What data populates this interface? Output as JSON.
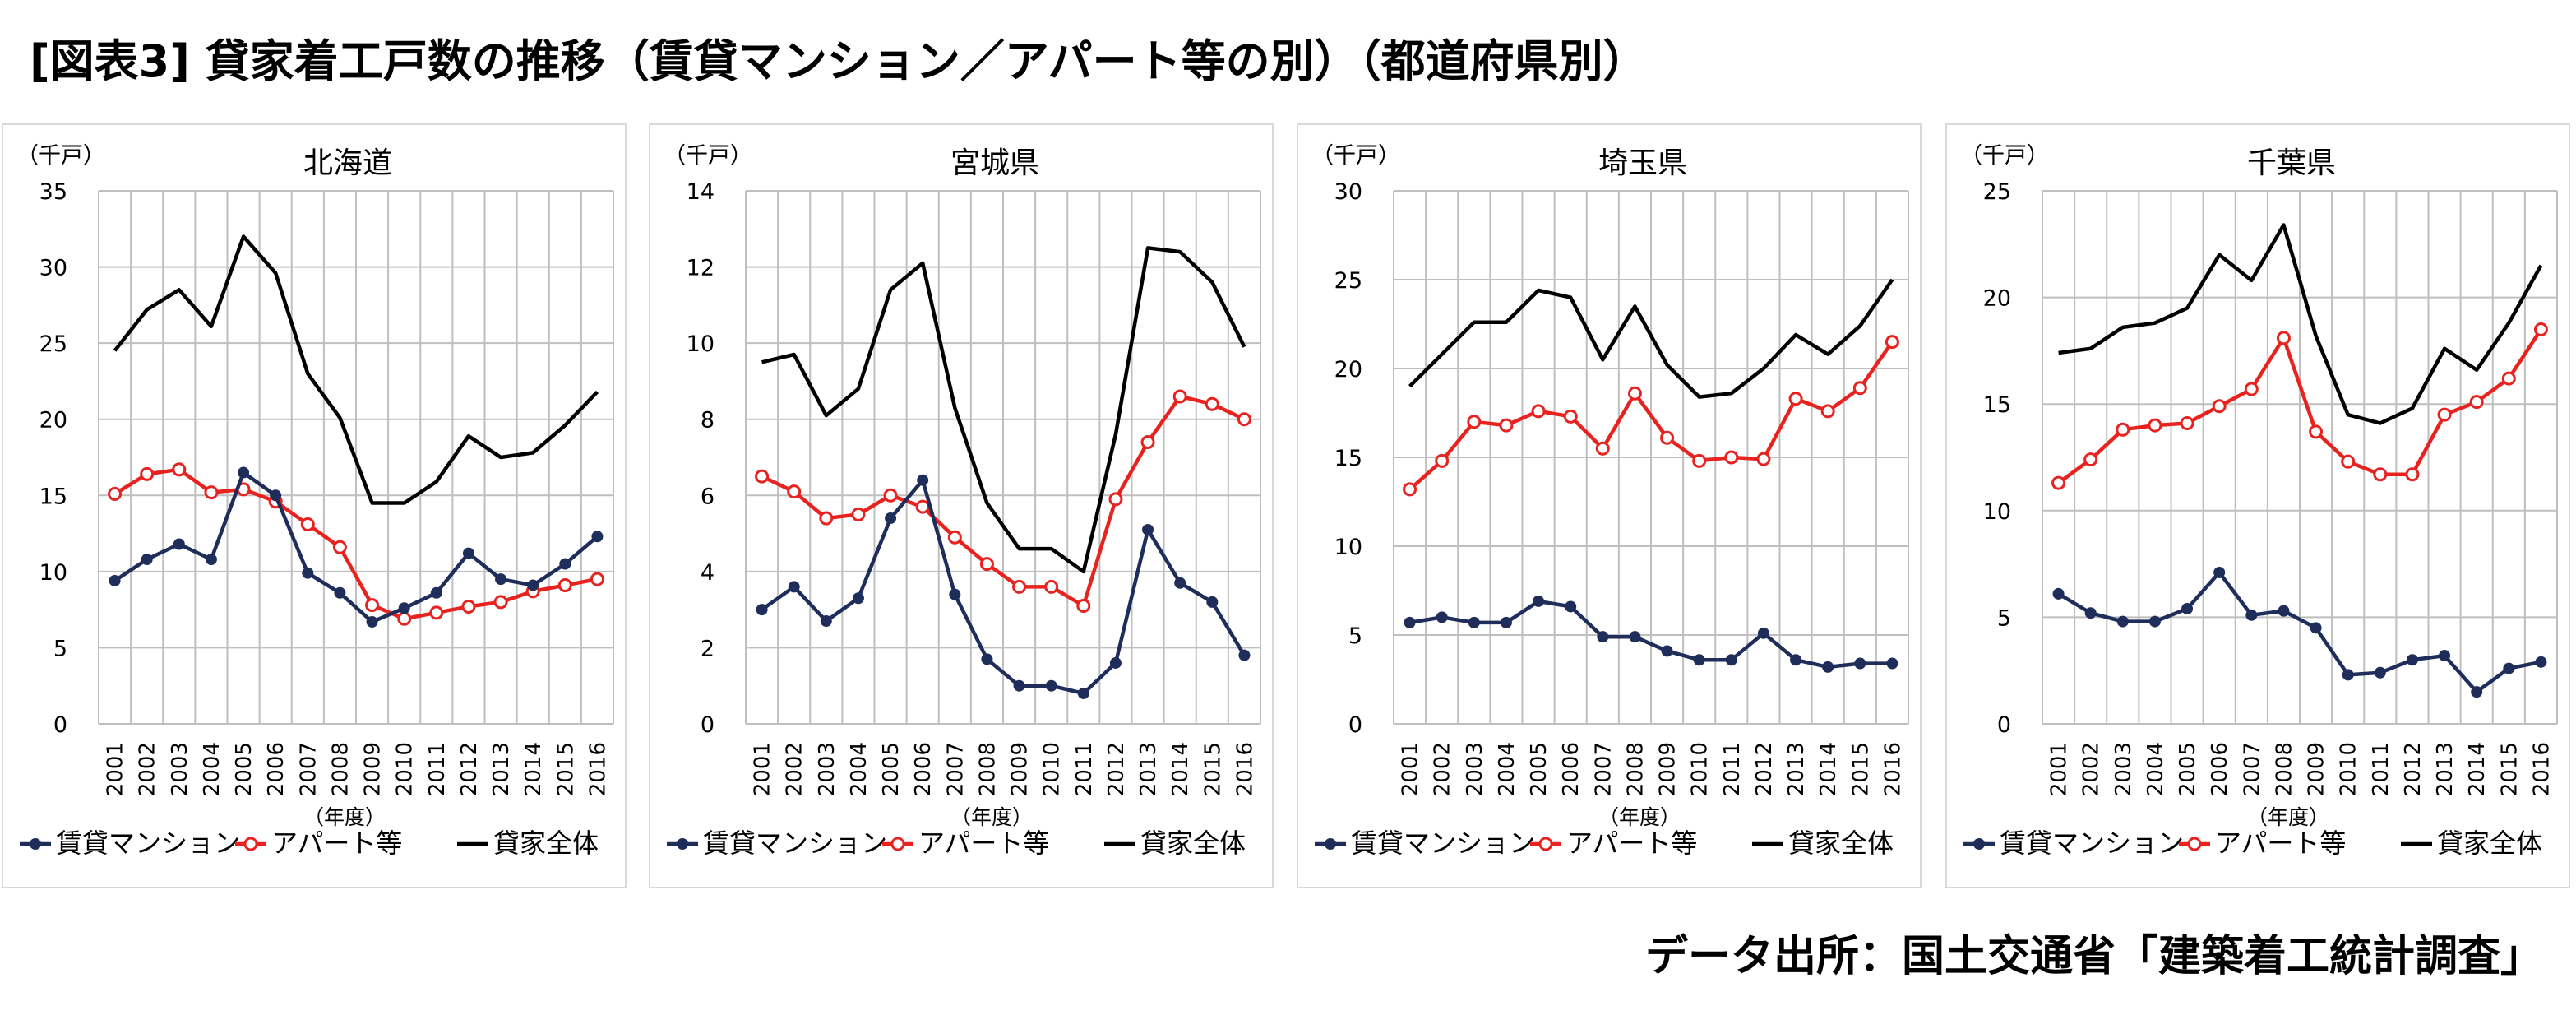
{
  "page": {
    "title": "[図表3] 貸家着工戸数の推移（賃貸マンション／アパート等の別）（都道府県別）",
    "source": "データ出所：国土交通省「建築着工統計調査」"
  },
  "colors": {
    "mansion": "#1f2d5a",
    "apartment": "#e8231f",
    "total": "#000000",
    "grid": "#bfbfbf"
  },
  "chart_data": [
    {
      "type": "line",
      "title": "北海道",
      "unit_label": "（千戸）",
      "xlabel": "（年度）",
      "ylim": [
        0,
        35
      ],
      "yticks": [
        0,
        5,
        10,
        15,
        20,
        25,
        30,
        35
      ],
      "x": [
        "2001",
        "2002",
        "2003",
        "2004",
        "2005",
        "2006",
        "2007",
        "2008",
        "2009",
        "2010",
        "2011",
        "2012",
        "2013",
        "2014",
        "2015",
        "2016"
      ],
      "series": [
        {
          "name": "賃貸マンション",
          "values": [
            9.4,
            10.8,
            11.8,
            10.8,
            16.5,
            15.0,
            9.9,
            8.6,
            6.7,
            7.6,
            8.6,
            11.2,
            9.5,
            9.1,
            10.5,
            12.3
          ]
        },
        {
          "name": "アパート等",
          "values": [
            15.1,
            16.4,
            16.7,
            15.2,
            15.4,
            14.6,
            13.1,
            11.6,
            7.8,
            6.9,
            7.3,
            7.7,
            8.0,
            8.7,
            9.1,
            9.5
          ]
        },
        {
          "name": "貸家全体",
          "values": [
            24.5,
            27.2,
            28.5,
            26.1,
            32.0,
            29.6,
            23.0,
            20.1,
            14.5,
            14.5,
            15.9,
            18.9,
            17.5,
            17.8,
            19.6,
            21.8
          ]
        }
      ],
      "legend": "bottom"
    },
    {
      "type": "line",
      "title": "宮城県",
      "unit_label": "（千戸）",
      "xlabel": "（年度）",
      "ylim": [
        0,
        14
      ],
      "yticks": [
        0,
        2,
        4,
        6,
        8,
        10,
        12,
        14
      ],
      "x": [
        "2001",
        "2002",
        "2003",
        "2004",
        "2005",
        "2006",
        "2007",
        "2008",
        "2009",
        "2010",
        "2011",
        "2012",
        "2013",
        "2014",
        "2015",
        "2016"
      ],
      "series": [
        {
          "name": "賃貸マンション",
          "values": [
            3.0,
            3.6,
            2.7,
            3.3,
            5.4,
            6.4,
            3.4,
            1.7,
            1.0,
            1.0,
            0.8,
            1.6,
            5.1,
            3.7,
            3.2,
            1.8
          ]
        },
        {
          "name": "アパート等",
          "values": [
            6.5,
            6.1,
            5.4,
            5.5,
            6.0,
            5.7,
            4.9,
            4.2,
            3.6,
            3.6,
            3.1,
            5.9,
            7.4,
            8.6,
            8.4,
            8.0
          ]
        },
        {
          "name": "貸家全体",
          "values": [
            9.5,
            9.7,
            8.1,
            8.8,
            11.4,
            12.1,
            8.3,
            5.8,
            4.6,
            4.6,
            4.0,
            7.6,
            12.5,
            12.4,
            11.6,
            9.9
          ]
        }
      ],
      "legend": "bottom"
    },
    {
      "type": "line",
      "title": "埼玉県",
      "unit_label": "（千戸）",
      "xlabel": "（年度）",
      "ylim": [
        0,
        30
      ],
      "yticks": [
        0,
        5,
        10,
        15,
        20,
        25,
        30
      ],
      "x": [
        "2001",
        "2002",
        "2003",
        "2004",
        "2005",
        "2006",
        "2007",
        "2008",
        "2009",
        "2010",
        "2011",
        "2012",
        "2013",
        "2014",
        "2015",
        "2016"
      ],
      "series": [
        {
          "name": "賃貸マンション",
          "values": [
            5.7,
            6.0,
            5.7,
            5.7,
            6.9,
            6.6,
            4.9,
            4.9,
            4.1,
            3.6,
            3.6,
            5.1,
            3.6,
            3.2,
            3.4,
            3.4
          ]
        },
        {
          "name": "アパート等",
          "values": [
            13.2,
            14.8,
            17.0,
            16.8,
            17.6,
            17.3,
            15.5,
            18.6,
            16.1,
            14.8,
            15.0,
            14.9,
            18.3,
            17.6,
            18.9,
            21.5
          ]
        },
        {
          "name": "貸家全体",
          "values": [
            19.0,
            20.8,
            22.6,
            22.6,
            24.4,
            24.0,
            20.5,
            23.5,
            20.2,
            18.4,
            18.6,
            20.0,
            21.9,
            20.8,
            22.4,
            25.0
          ]
        }
      ],
      "legend": "bottom"
    },
    {
      "type": "line",
      "title": "千葉県",
      "unit_label": "（千戸）",
      "xlabel": "（年度）",
      "ylim": [
        0,
        25
      ],
      "yticks": [
        0,
        5,
        10,
        15,
        20,
        25
      ],
      "x": [
        "2001",
        "2002",
        "2003",
        "2004",
        "2005",
        "2006",
        "2007",
        "2008",
        "2009",
        "2010",
        "2011",
        "2012",
        "2013",
        "2014",
        "2015",
        "2016"
      ],
      "series": [
        {
          "name": "賃貸マンション",
          "values": [
            6.1,
            5.2,
            4.8,
            4.8,
            5.4,
            7.1,
            5.1,
            5.3,
            4.5,
            2.3,
            2.4,
            3.0,
            3.2,
            1.5,
            2.6,
            2.9
          ]
        },
        {
          "name": "アパート等",
          "values": [
            11.3,
            12.4,
            13.8,
            14.0,
            14.1,
            14.9,
            15.7,
            18.1,
            13.7,
            12.3,
            11.7,
            11.7,
            14.5,
            15.1,
            16.2,
            18.5
          ]
        },
        {
          "name": "貸家全体",
          "values": [
            17.4,
            17.6,
            18.6,
            18.8,
            19.5,
            22.0,
            20.8,
            23.4,
            18.2,
            14.5,
            14.1,
            14.8,
            17.6,
            16.6,
            18.8,
            21.5
          ]
        }
      ],
      "legend": "bottom"
    }
  ]
}
